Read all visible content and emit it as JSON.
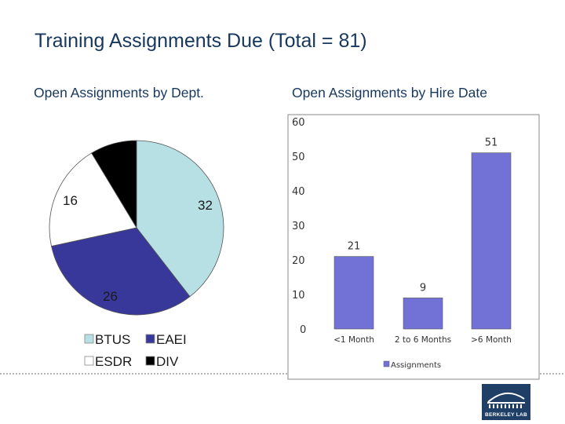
{
  "slide": {
    "title": "Training Assignments Due (Total = 81)",
    "logo_text": "BERKELEY LAB"
  },
  "colors": {
    "title": "#17375e",
    "bar_fill": "#7272d6",
    "pie_btus": "#b7e0e4",
    "pie_eaei": "#38389a",
    "pie_esdr": "#ffffff",
    "pie_div": "#000000",
    "logo_bg": "#1f3f66"
  },
  "chart_data": [
    {
      "type": "pie",
      "title": "Open Assignments by Dept.",
      "slices": [
        {
          "name": "BTUS",
          "value": 32,
          "color": "#b7e0e4"
        },
        {
          "name": "EAEI",
          "value": 26,
          "color": "#38389a"
        },
        {
          "name": "ESDR",
          "value": 16,
          "color": "#ffffff"
        },
        {
          "name": "DIV",
          "value": 7,
          "color": "#000000"
        }
      ],
      "data_labels": [
        "32",
        "26",
        "16"
      ],
      "legend": [
        "BTUS",
        "EAEI",
        "ESDR",
        "DIV"
      ],
      "legend_position": "bottom"
    },
    {
      "type": "bar",
      "title": "Open Assignments by Hire Date",
      "categories": [
        "<1 Month",
        "2 to 6 Months",
        ">6 Month"
      ],
      "series": [
        {
          "name": "Assignments",
          "values": [
            21,
            9,
            51
          ]
        }
      ],
      "ylim": [
        0,
        60
      ],
      "yticks": [
        "0",
        "10",
        "20",
        "30",
        "40",
        "50",
        "60"
      ],
      "grid": false,
      "legend_position": "bottom"
    }
  ]
}
